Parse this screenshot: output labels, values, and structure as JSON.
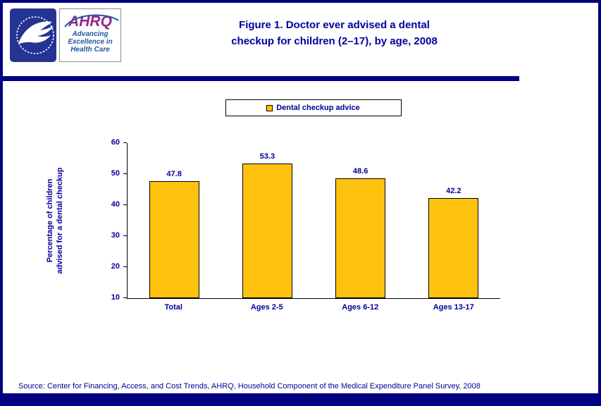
{
  "colors": {
    "navy_border": "#000080",
    "navy_text": "#00009C",
    "bar_gold": "#FFC20E",
    "ahrq_purple": "#93268F",
    "ahrq_blue": "#2456A4"
  },
  "header": {
    "title_line1": "Figure 1. Doctor ever advised a dental",
    "title_line2": "checkup for children (2–17), by age, 2008",
    "ahrq": {
      "acronym": "AHRQ",
      "tagline_line1": "Advancing",
      "tagline_line2": "Excellence in",
      "tagline_line3": "Health Care"
    }
  },
  "chart_data": {
    "type": "bar",
    "title": "Figure 1. Doctor ever advised a dental checkup for children (2–17), by age, 2008",
    "categories": [
      "Total",
      "Ages 2-5",
      "Ages 6-12",
      "Ages 13-17"
    ],
    "values": [
      47.8,
      53.3,
      48.6,
      42.2
    ],
    "legend": [
      "Dental checkup advice"
    ],
    "legend_position": "top",
    "ylabel_line1": "Percentage of children",
    "ylabel_line2": "advised for a dental checkup",
    "xlabel": "",
    "ylim": [
      10,
      60
    ],
    "yticks": [
      10,
      20,
      30,
      40,
      50,
      60
    ],
    "grid": false,
    "bar_color": "#FFC20E"
  },
  "footer": {
    "source": "Source: Center for Financing, Access, and Cost Trends, AHRQ, Household Component of the Medical Expenditure Panel Survey, 2008"
  }
}
